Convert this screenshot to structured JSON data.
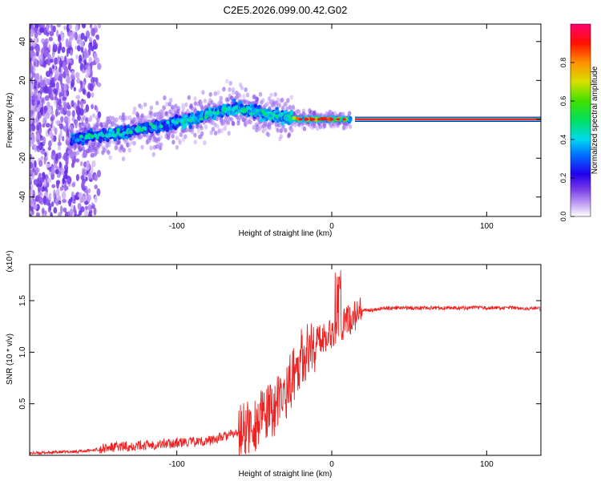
{
  "title": "C2E5.2026.099.00.42.G02",
  "chart_data": [
    {
      "type": "heatmap",
      "xlabel": "Height of straight line (km)",
      "ylabel": "Frequency (Hz)",
      "xlim": [
        -195,
        135
      ],
      "ylim": [
        -50,
        49
      ],
      "x_ticks": [
        -100,
        0,
        100
      ],
      "y_ticks": [
        -40,
        -20,
        0,
        20,
        40
      ],
      "colorbar": {
        "label": "Normalized spectral amplitude",
        "range": [
          0,
          1
        ],
        "ticks": [
          "0.0",
          "0.2",
          "0.4",
          "0.6",
          "0.8"
        ],
        "tick_values": [
          0,
          0.2,
          0.4,
          0.6,
          0.8
        ],
        "stops": [
          "#ffffff",
          "#9b6ff0",
          "#4b00d8",
          "#0000ff",
          "#00a8ff",
          "#00e8e8",
          "#00e000",
          "#a0e000",
          "#ffd000",
          "#ff6000",
          "#ff0000",
          "#ff0070"
        ]
      },
      "ridge": [
        {
          "x": -165,
          "f": -10
        },
        {
          "x": -150,
          "f": -8
        },
        {
          "x": -130,
          "f": -6
        },
        {
          "x": -110,
          "f": -3
        },
        {
          "x": -90,
          "f": 0
        },
        {
          "x": -70,
          "f": 5
        },
        {
          "x": -60,
          "f": 6
        },
        {
          "x": -50,
          "f": 4
        },
        {
          "x": -40,
          "f": 2
        },
        {
          "x": -30,
          "f": 1
        },
        {
          "x": -20,
          "f": 0
        },
        {
          "x": 0,
          "f": 0
        },
        {
          "x": 15,
          "f": 0
        }
      ],
      "carrier": {
        "x_start": 15,
        "x_end": 135,
        "freq": 0,
        "amplitude": 0.95
      }
    },
    {
      "type": "line",
      "xlabel": "Height of straight line (km)",
      "ylabel": "SNR (10 * v/v)",
      "scale_label": "(x10⁴)",
      "xlim": [
        -195,
        135
      ],
      "ylim": [
        0,
        1.85
      ],
      "x_ticks": [
        -100,
        0,
        100
      ],
      "y_ticks": [
        0.5,
        1.0,
        1.5
      ],
      "y_tick_labels": [
        "0.5",
        "1.0",
        "1.5"
      ],
      "color": "#ee2222",
      "series": [
        {
          "name": "SNR",
          "x": [
            -195,
            -160,
            -140,
            -120,
            -100,
            -80,
            -70,
            -60,
            -50,
            -40,
            -35,
            -30,
            -25,
            -20,
            -15,
            -10,
            -5,
            0,
            5,
            10,
            15,
            20,
            30,
            40,
            60,
            80,
            100,
            120,
            135
          ],
          "y": [
            0.02,
            0.04,
            0.08,
            0.1,
            0.12,
            0.14,
            0.18,
            0.22,
            0.3,
            0.42,
            0.5,
            0.6,
            0.78,
            0.95,
            1.02,
            1.1,
            1.15,
            1.2,
            1.25,
            1.3,
            1.35,
            1.4,
            1.42,
            1.43,
            1.43,
            1.43,
            1.43,
            1.43,
            1.42
          ]
        }
      ]
    }
  ]
}
